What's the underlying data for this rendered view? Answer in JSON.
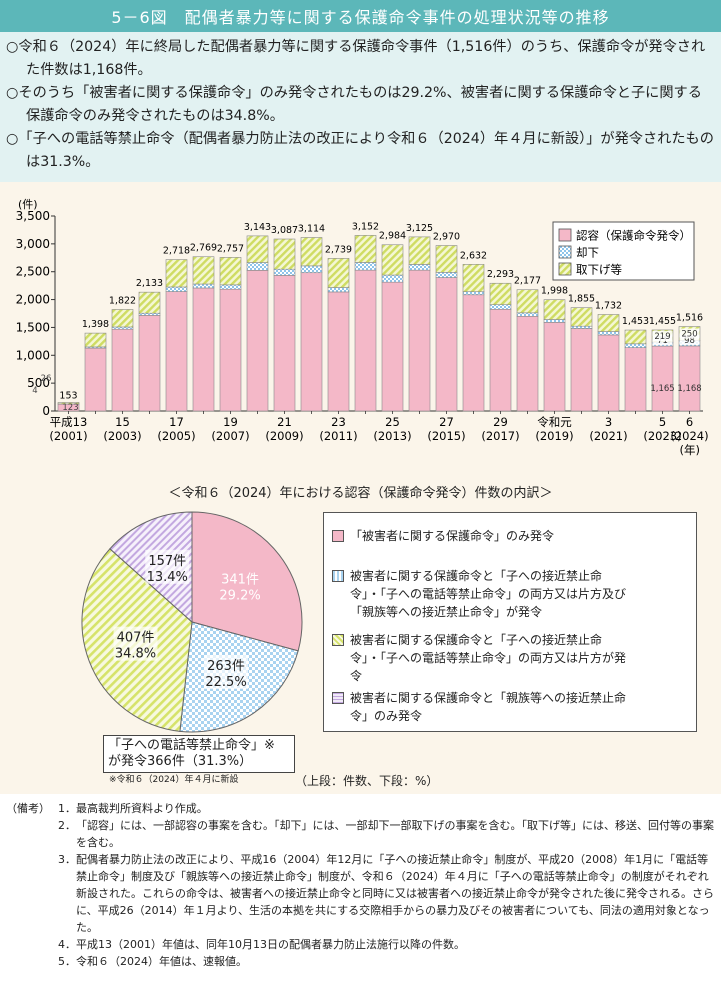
{
  "header": {
    "title": "5－6図　配偶者暴力等に関する保護命令事件の処理状況等の推移"
  },
  "summary": [
    "○令和６（2024）年に終局した配偶者暴力等に関する保護命令事件（1,516件）のうち、保護命令が発令された件数は1,168件。",
    "○そのうち「被害者に関する保護命令」のみ発令されたものは29.2%、被害者に関する保護命令と子に関する保護命令のみ発令されたものは34.8%。",
    "○「子への電話等禁止命令（配偶者暴力防止法の改正により令和６（2024）年４月に新設）」が発令されたものは31.3%。"
  ],
  "chart_data": [
    {
      "type": "bar",
      "stacked": true,
      "ylabel": "(件)",
      "xlabel": "(年)",
      "ylim": [
        0,
        3500
      ],
      "yticks": [
        "3,500",
        "3,000",
        "2,500",
        "2,000",
        "1,500",
        "1,000",
        "500",
        "0"
      ],
      "categories": [
        "平成13",
        "14",
        "15",
        "16",
        "17",
        "18",
        "19",
        "20",
        "21",
        "22",
        "23",
        "24",
        "25",
        "26",
        "27",
        "28",
        "29",
        "30",
        "令和元",
        "2",
        "3",
        "4",
        "5",
        "6"
      ],
      "xtick_labels": [
        {
          "i": 0,
          "l1": "平成13",
          "l2": "(2001)"
        },
        {
          "i": 2,
          "l1": "15",
          "l2": "(2003)"
        },
        {
          "i": 4,
          "l1": "17",
          "l2": "(2005)"
        },
        {
          "i": 6,
          "l1": "19",
          "l2": "(2007)"
        },
        {
          "i": 8,
          "l1": "21",
          "l2": "(2009)"
        },
        {
          "i": 10,
          "l1": "23",
          "l2": "(2011)"
        },
        {
          "i": 12,
          "l1": "25",
          "l2": "(2013)"
        },
        {
          "i": 14,
          "l1": "27",
          "l2": "(2015)"
        },
        {
          "i": 16,
          "l1": "29",
          "l2": "(2017)"
        },
        {
          "i": 18,
          "l1": "令和元",
          "l2": "(2019)"
        },
        {
          "i": 20,
          "l1": "3",
          "l2": "(2021)"
        },
        {
          "i": 22,
          "l1": "5",
          "l2": "(2023)"
        },
        {
          "i": 23,
          "l1": "6",
          "l2": "(2024)"
        }
      ],
      "totals": [
        153,
        1398,
        1822,
        2133,
        2718,
        2769,
        2757,
        3143,
        3087,
        3114,
        2739,
        3152,
        2984,
        3125,
        2970,
        2632,
        2293,
        2177,
        1998,
        1855,
        1732,
        1453,
        1455,
        1516
      ],
      "total_labels": [
        "153",
        "1,398",
        "1,822",
        "2,133",
        "2,718",
        "2,769",
        "2,757",
        "3,143",
        "3,087",
        "3,114",
        "2,739",
        "3,152",
        "2,984",
        "3,125",
        "2,970",
        "2,632",
        "2,293",
        "2,177",
        "1,998",
        "1,855",
        "1,732",
        "1,453",
        "1,455",
        "1,516"
      ],
      "series": [
        {
          "name": "認容（保護命令発令）",
          "color": "#f4b8c8",
          "values": [
            123,
            1128,
            1468,
            1717,
            2144,
            2208,
            2186,
            2525,
            2434,
            2482,
            2137,
            2528,
            2312,
            2528,
            2395,
            2086,
            1826,
            1700,
            1591,
            1481,
            1365,
            1137,
            1165,
            1168
          ]
        },
        {
          "name": "却下",
          "color": "#a9d3f0",
          "values": [
            4,
            22,
            40,
            38,
            82,
            71,
            78,
            139,
            111,
            123,
            79,
            138,
            128,
            103,
            94,
            55,
            82,
            62,
            51,
            41,
            61,
            69,
            71,
            98
          ]
        },
        {
          "name": "取下げ等",
          "color": "#e3ec9c",
          "values": [
            26,
            248,
            314,
            378,
            492,
            490,
            493,
            479,
            542,
            509,
            523,
            486,
            544,
            494,
            481,
            491,
            385,
            415,
            356,
            333,
            306,
            247,
            219,
            250
          ]
        }
      ],
      "segment_labels": [
        {
          "i": 0,
          "s": 0,
          "text": "123"
        },
        {
          "i": 0,
          "s": 1,
          "text": "4"
        },
        {
          "i": 0,
          "s": 2,
          "text": "26"
        },
        {
          "i": 22,
          "s": 0,
          "text": "1,165"
        },
        {
          "i": 22,
          "s": 1,
          "text": "71"
        },
        {
          "i": 22,
          "s": 2,
          "text": "219"
        },
        {
          "i": 23,
          "s": 0,
          "text": "1,168"
        },
        {
          "i": 23,
          "s": 1,
          "text": "98"
        },
        {
          "i": 23,
          "s": 2,
          "text": "250"
        }
      ],
      "legend_placement": "top-right"
    },
    {
      "type": "pie",
      "title": "＜令和６（2024）年における認容（保護命令発令）件数の内訳＞",
      "slices": [
        {
          "count": 341,
          "count_label": "341件",
          "percent": 29.2,
          "percent_label": "29.2%",
          "color": "#f4b8c8",
          "legend": "「被害者に関する保護命令」のみ発令"
        },
        {
          "count": 263,
          "count_label": "263件",
          "percent": 22.5,
          "percent_label": "22.5%",
          "color": "#a9d3f0",
          "legend": "被害者に関する保護命令と「子への接近禁止命令」・「子への電話等禁止命令」の両方又は片方及び「親族等への接近禁止命令」が発令"
        },
        {
          "count": 407,
          "count_label": "407件",
          "percent": 34.8,
          "percent_label": "34.8%",
          "color": "#e3ec9c",
          "legend": "被害者に関する保護命令と「子への接近禁止命令」・「子への電話等禁止命令」の両方又は片方が発令"
        },
        {
          "count": 157,
          "count_label": "157件",
          "percent": 13.4,
          "percent_label": "13.4%",
          "color": "#d9c6ec",
          "legend": "被害者に関する保護命令と「親族等への接近禁止命令」のみ発令"
        }
      ]
    }
  ],
  "callout": {
    "line1": "「子への電話等禁止命令」※",
    "line2": "が発令366件（31.3%）",
    "note": "※令和６（2024）年４月に新設"
  },
  "unit_note": "（上段：件数、下段：%）",
  "notes": {
    "head": "（備考）",
    "items": [
      {
        "num": "1．",
        "text": "最高裁判所資料より作成。"
      },
      {
        "num": "2．",
        "text": "「認容」には、一部認容の事案を含む。「却下」には、一部却下一部取下げの事案を含む。「取下げ等」には、移送、回付等の事案を含む。"
      },
      {
        "num": "3．",
        "text": "配偶者暴力防止法の改正により、平成16（2004）年12月に「子への接近禁止命令」制度が、平成20（2008）年1月に「電話等禁止命令」制度及び「親族等への接近禁止命令」制度が、令和６（2024）年４月に「子への電話等禁止命令」の制度がそれぞれ新設された。これらの命令は、被害者への接近禁止命令と同時に又は被害者への接近禁止命令が発令された後に発令される。さらに、平成26（2014）年１月より、生活の本拠を共にする交際相手からの暴力及びその被害者についても、同法の適用対象となった。"
      },
      {
        "num": "4．",
        "text": "平成13（2001）年値は、同年10月13日の配偶者暴力防止法施行以降の件数。"
      },
      {
        "num": "5．",
        "text": "令和６（2024）年値は、速報値。"
      }
    ]
  }
}
